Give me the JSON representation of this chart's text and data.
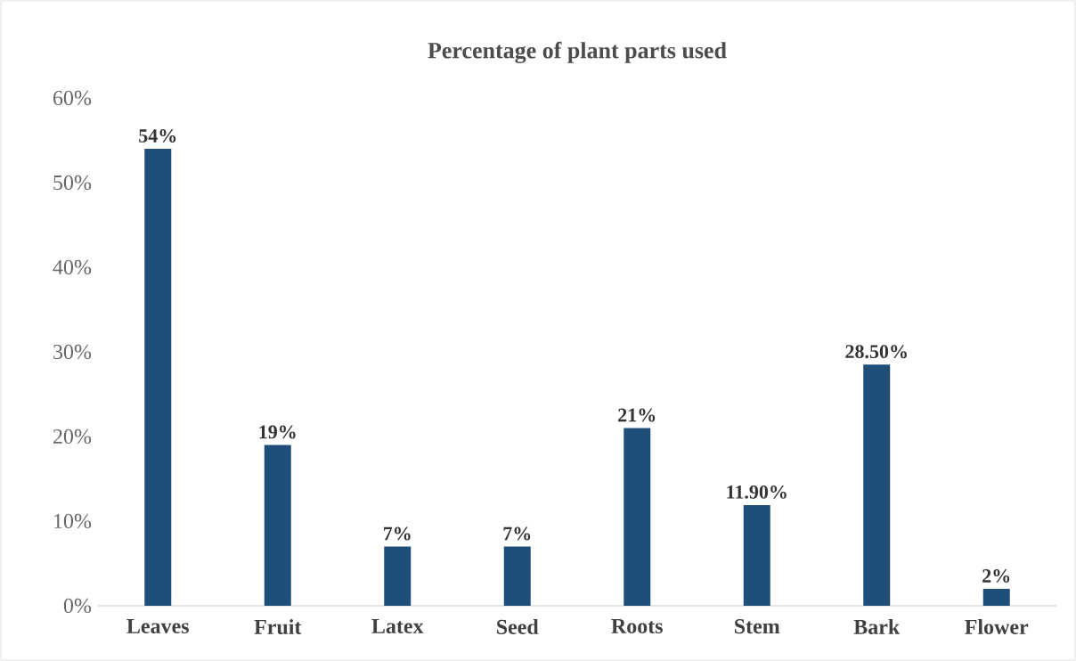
{
  "chart_data": {
    "type": "bar",
    "title": "Percentage of plant parts used",
    "categories": [
      "Leaves",
      "Fruit",
      "Latex",
      "Seed",
      "Roots",
      "Stem",
      "Bark",
      "Flower"
    ],
    "values": [
      54,
      19,
      7,
      7,
      21,
      11.9,
      28.5,
      2
    ],
    "value_labels": [
      "54%",
      "19%",
      "7%",
      "7%",
      "21%",
      "11.90%",
      "28.50%",
      "2%"
    ],
    "color": "#1f4e79",
    "ylim": [
      0,
      60
    ],
    "yticks": [
      {
        "value": 0,
        "label": "0%"
      },
      {
        "value": 10,
        "label": "10%"
      },
      {
        "value": 20,
        "label": "20%"
      },
      {
        "value": 30,
        "label": "30%"
      },
      {
        "value": 40,
        "label": "40%"
      },
      {
        "value": 50,
        "label": "50%"
      },
      {
        "value": 60,
        "label": "60%"
      }
    ],
    "grid": false
  }
}
